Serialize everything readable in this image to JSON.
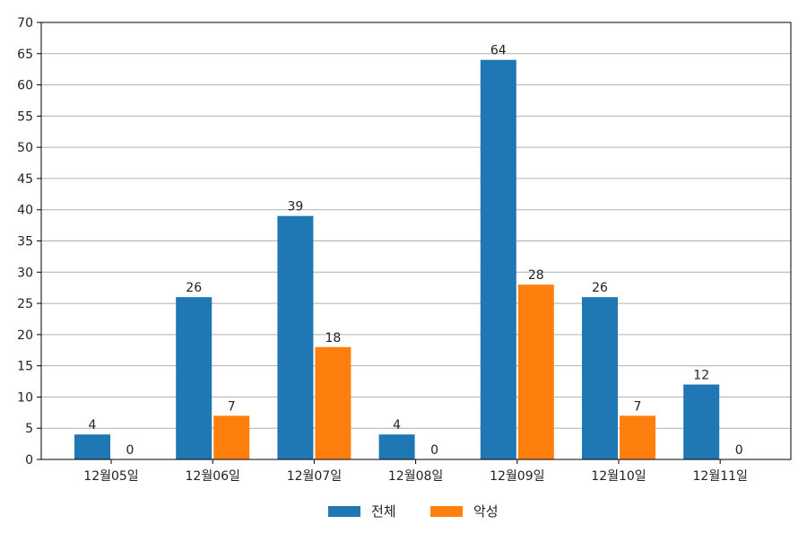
{
  "chart_data": {
    "type": "bar",
    "categories": [
      "12월05일",
      "12월06일",
      "12월07일",
      "12월08일",
      "12월09일",
      "12월10일",
      "12월11일"
    ],
    "series": [
      {
        "name": "전체",
        "values": [
          4,
          26,
          39,
          4,
          64,
          26,
          12
        ],
        "color": "#1f77b4"
      },
      {
        "name": "악성",
        "values": [
          0,
          7,
          18,
          0,
          28,
          7,
          0
        ],
        "color": "#ff7f0e"
      }
    ],
    "ylim": [
      0,
      70
    ],
    "yticks": [
      0,
      5,
      10,
      15,
      20,
      25,
      30,
      35,
      40,
      45,
      50,
      55,
      60,
      65,
      70
    ],
    "grid": true,
    "legend_position": "bottom-center",
    "data_labels": true,
    "title": "",
    "xlabel": "",
    "ylabel": ""
  }
}
